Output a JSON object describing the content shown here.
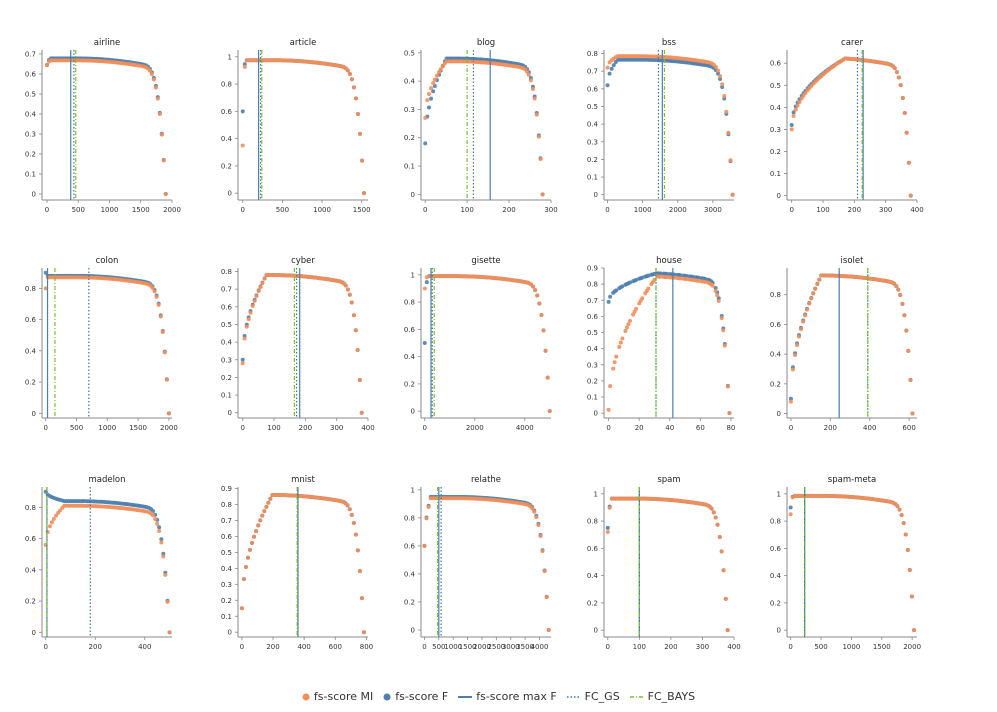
{
  "colors": {
    "mi": "#f28e5a",
    "f": "#4e7fad",
    "max_line": "#4a7fb0",
    "gs_line": "#3d75a8",
    "bays_line": "#78c22a",
    "axis": "#888888"
  },
  "legend": {
    "mi_label": "fs-score MI",
    "f_label": "fs-score F",
    "max_label": "fs-score max F",
    "gs_label": "FC_GS",
    "bays_label": "FC_BAYS"
  },
  "chart_data": [
    {
      "type": "scatter",
      "title": "airline",
      "xlim": [
        -80,
        2000
      ],
      "ylim": [
        -0.03,
        0.72
      ],
      "xticks": [
        0,
        500,
        1000,
        1500,
        2000
      ],
      "yticks": [
        0,
        0.1,
        0.2,
        0.3,
        0.4,
        0.5,
        0.6,
        0.7
      ],
      "ytick_labels": [
        "0",
        "0.1",
        "0.2",
        "0.3",
        "0.4",
        "0.5",
        "0.6",
        "0.7"
      ],
      "n": 1900,
      "max_f": 380,
      "fc_gs": 430,
      "fc_bays": 460,
      "peak": 0.668,
      "start_mi": 0.645,
      "start_f": 0.645,
      "rise": 0.03,
      "f_offset": 0.01
    },
    {
      "type": "scatter",
      "title": "article",
      "xlim": [
        -60,
        1580
      ],
      "ylim": [
        -0.05,
        1.05
      ],
      "xticks": [
        0,
        500,
        1000,
        1500
      ],
      "yticks": [
        0,
        0.2,
        0.4,
        0.6,
        0.8,
        1
      ],
      "ytick_labels": [
        "0",
        "0.2",
        "0.4",
        "0.6",
        "0.8",
        "1"
      ],
      "n": 1530,
      "max_f": 200,
      "fc_gs": 225,
      "fc_bays": 240,
      "peak": 0.975,
      "start_mi": 0.35,
      "start_f": 0.6,
      "rise": 0.02,
      "f_offset": 0.0
    },
    {
      "type": "scatter",
      "title": "blog",
      "xlim": [
        -10,
        300
      ],
      "ylim": [
        -0.02,
        0.51
      ],
      "xticks": [
        0,
        100,
        200,
        300
      ],
      "yticks": [
        0,
        0.1,
        0.2,
        0.3,
        0.4,
        0.5
      ],
      "ytick_labels": [
        "0",
        "0.1",
        "0.2",
        "0.3",
        "0.4",
        "0.5"
      ],
      "n": 280,
      "max_f": 155,
      "fc_gs": 115,
      "fc_bays": 100,
      "peak": 0.47,
      "start_mi": 0.27,
      "start_f": 0.18,
      "rise": 0.18,
      "f_offset": 0.01
    },
    {
      "type": "scatter",
      "title": "bss",
      "xlim": [
        -100,
        3600
      ],
      "ylim": [
        -0.03,
        0.82
      ],
      "xticks": [
        0,
        1000,
        2000,
        3000
      ],
      "yticks": [
        0,
        0.1,
        0.2,
        0.3,
        0.4,
        0.5,
        0.6,
        0.7,
        0.8
      ],
      "ytick_labels": [
        "0",
        "0.1",
        "0.2",
        "0.3",
        "0.4",
        "0.5",
        "0.6",
        "0.7",
        "0.8"
      ],
      "n": 3560,
      "max_f": 1560,
      "fc_gs": 1450,
      "fc_bays": 1620,
      "peak": 0.785,
      "start_mi": 0.72,
      "start_f": 0.62,
      "rise": 0.08,
      "f_offset": -0.02
    },
    {
      "type": "scatter",
      "title": "carer",
      "xlim": [
        -15,
        400
      ],
      "ylim": [
        -0.02,
        0.66
      ],
      "xticks": [
        0,
        100,
        200,
        300,
        400
      ],
      "yticks": [
        0,
        0.1,
        0.2,
        0.3,
        0.4,
        0.5,
        0.6
      ],
      "ytick_labels": [
        "0",
        "0.1",
        "0.2",
        "0.3",
        "0.4",
        "0.5",
        "0.6"
      ],
      "n": 380,
      "max_f": 228,
      "fc_gs": 210,
      "fc_bays": 225,
      "peak": 0.625,
      "start_mi": 0.3,
      "start_f": 0.32,
      "rise": 0.45,
      "f_offset": 0.0
    },
    {
      "type": "scatter",
      "title": "colon",
      "xlim": [
        -60,
        2050
      ],
      "ylim": [
        -0.03,
        0.93
      ],
      "xticks": [
        0,
        500,
        1000,
        1500,
        2000
      ],
      "yticks": [
        0,
        0.2,
        0.4,
        0.6,
        0.8
      ],
      "ytick_labels": [
        "0",
        "0.2",
        "0.4",
        "0.6",
        "0.8"
      ],
      "n": 2000,
      "max_f": 30,
      "fc_gs": 700,
      "fc_bays": 150,
      "peak": 0.87,
      "start_mi": 0.8,
      "start_f": 0.9,
      "rise": 0.01,
      "f_offset": 0.01
    },
    {
      "type": "scatter",
      "title": "cyber",
      "xlim": [
        -15,
        400
      ],
      "ylim": [
        -0.03,
        0.82
      ],
      "xticks": [
        0,
        100,
        200,
        300,
        400
      ],
      "yticks": [
        0,
        0.1,
        0.2,
        0.3,
        0.4,
        0.5,
        0.6,
        0.7,
        0.8
      ],
      "ytick_labels": [
        "0",
        "0.1",
        "0.2",
        "0.3",
        "0.4",
        "0.5",
        "0.6",
        "0.7",
        "0.8"
      ],
      "n": 380,
      "max_f": 182,
      "fc_gs": 172,
      "fc_bays": 165,
      "peak": 0.78,
      "start_mi": 0.28,
      "start_f": 0.3,
      "rise": 0.2,
      "f_offset": 0.0
    },
    {
      "type": "scatter",
      "title": "gisette",
      "xlim": [
        -150,
        5050
      ],
      "ylim": [
        -0.05,
        1.05
      ],
      "xticks": [
        0,
        2000,
        4000
      ],
      "yticks": [
        0,
        0.2,
        0.4,
        0.6,
        0.8,
        1
      ],
      "ytick_labels": [
        "0",
        "0.2",
        "0.4",
        "0.6",
        "0.8",
        "1"
      ],
      "n": 5000,
      "max_f": 250,
      "fc_gs": 300,
      "fc_bays": 380,
      "peak": 0.99,
      "start_mi": 0.9,
      "start_f": 0.5,
      "rise": 0.02,
      "f_offset": 0.0
    },
    {
      "type": "scatter",
      "title": "house",
      "xlim": [
        -3,
        82
      ],
      "ylim": [
        -0.03,
        0.9
      ],
      "xticks": [
        0,
        20,
        40,
        60,
        80
      ],
      "yticks": [
        0,
        0.1,
        0.2,
        0.3,
        0.4,
        0.5,
        0.6,
        0.7,
        0.8,
        0.9
      ],
      "ytick_labels": [
        "0",
        "0.1",
        "0.2",
        "0.3",
        "0.4",
        "0.5",
        "0.6",
        "0.7",
        "0.8",
        "0.9"
      ],
      "n": 79,
      "max_f": 42,
      "fc_gs": 31,
      "fc_bays": 31,
      "peak": 0.85,
      "start_mi": 0.02,
      "start_f": 0.69,
      "rise": 0.4,
      "f_offset": 0.02
    },
    {
      "type": "scatter",
      "title": "isolet",
      "xlim": [
        -20,
        640
      ],
      "ylim": [
        -0.03,
        0.98
      ],
      "xticks": [
        0,
        200,
        400,
        600
      ],
      "yticks": [
        0,
        0.2,
        0.4,
        0.6,
        0.8
      ],
      "ytick_labels": [
        "0",
        "0.2",
        "0.4",
        "0.6",
        "0.8"
      ],
      "n": 617,
      "max_f": 245,
      "fc_gs": 390,
      "fc_bays": 390,
      "peak": 0.93,
      "start_mi": 0.08,
      "start_f": 0.1,
      "rise": 0.25,
      "f_offset": 0.0
    },
    {
      "type": "scatter",
      "title": "madelon",
      "xlim": [
        -15,
        510
      ],
      "ylim": [
        -0.03,
        0.93
      ],
      "xticks": [
        0,
        200,
        400
      ],
      "yticks": [
        0,
        0.2,
        0.4,
        0.6,
        0.8
      ],
      "ytick_labels": [
        "0",
        "0.2",
        "0.4",
        "0.6",
        "0.8"
      ],
      "n": 500,
      "max_f": 5,
      "fc_gs": 180,
      "fc_bays": 5,
      "peak": 0.81,
      "start_mi": 0.56,
      "start_f": 0.9,
      "rise": 0.15,
      "f_offset": 0.03
    },
    {
      "type": "scatter",
      "title": "mnist",
      "xlim": [
        -25,
        810
      ],
      "ylim": [
        -0.03,
        0.91
      ],
      "xticks": [
        0,
        200,
        400,
        600,
        800
      ],
      "yticks": [
        0,
        0.1,
        0.2,
        0.3,
        0.4,
        0.5,
        0.6,
        0.7,
        0.8,
        0.9
      ],
      "ytick_labels": [
        "0",
        "0.1",
        "0.2",
        "0.3",
        "0.4",
        "0.5",
        "0.6",
        "0.7",
        "0.8",
        "0.9"
      ],
      "n": 784,
      "max_f": 360,
      "fc_gs": 360,
      "fc_bays": 355,
      "peak": 0.86,
      "start_mi": 0.15,
      "start_f": 0.15,
      "rise": 0.25,
      "f_offset": 0.0
    },
    {
      "type": "scatter",
      "title": "relathe",
      "xlim": [
        -120,
        4400
      ],
      "ylim": [
        -0.05,
        1.02
      ],
      "xticks": [
        0,
        500,
        1000,
        1500,
        2000,
        2500,
        3000,
        3500,
        4000
      ],
      "yticks": [
        0,
        0.2,
        0.4,
        0.6,
        0.8,
        1
      ],
      "ytick_labels": [
        "0",
        "0.2",
        "0.4",
        "0.6",
        "0.8",
        "1"
      ],
      "n": 4322,
      "max_f": 500,
      "fc_gs": 580,
      "fc_bays": 460,
      "peak": 0.94,
      "start_mi": 0.6,
      "start_f": 0.6,
      "rise": 0.05,
      "f_offset": 0.01
    },
    {
      "type": "scatter",
      "title": "spam",
      "xlim": [
        -12,
        400
      ],
      "ylim": [
        -0.05,
        1.05
      ],
      "xticks": [
        0,
        100,
        200,
        300,
        400
      ],
      "yticks": [
        0,
        0.2,
        0.4,
        0.6,
        0.8,
        1
      ],
      "ytick_labels": [
        "0",
        "0.2",
        "0.4",
        "0.6",
        "0.8",
        "1"
      ],
      "n": 380,
      "max_f": 100,
      "fc_gs": 100,
      "fc_bays": 100,
      "peak": 0.965,
      "start_mi": 0.72,
      "start_f": 0.75,
      "rise": 0.03,
      "f_offset": 0.0
    },
    {
      "type": "scatter",
      "title": "spam-meta",
      "xlim": [
        -60,
        2080
      ],
      "ylim": [
        -0.05,
        1.05
      ],
      "xticks": [
        0,
        500,
        1000,
        1500,
        2000
      ],
      "yticks": [
        0,
        0.2,
        0.4,
        0.6,
        0.8,
        1
      ],
      "ytick_labels": [
        "0",
        "0.2",
        "0.4",
        "0.6",
        "0.8",
        "1"
      ],
      "n": 2030,
      "max_f": 230,
      "fc_gs": 230,
      "fc_bays": 235,
      "peak": 0.985,
      "start_mi": 0.85,
      "start_f": 0.9,
      "rise": 0.02,
      "f_offset": 0.0
    }
  ]
}
